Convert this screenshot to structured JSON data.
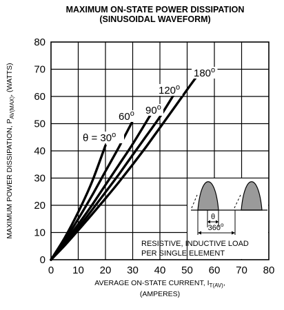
{
  "chart_data": {
    "type": "line",
    "title_line1": "MAXIMUM ON-STATE POWER DISSIPATION",
    "title_line2": "(SINUSOIDAL WAVEFORM)",
    "ylabel_main": "MAXIMUM POWER DISSIPATION, P",
    "ylabel_sub": "AV(MAX)",
    "ylabel_unit": ", (WATTS)",
    "xlabel_main": "AVERAGE ON-STATE  CURRENT, I",
    "xlabel_sub": "T(AV)",
    "xlabel_end": ",",
    "xlabel_unit": "(AMPERES)",
    "xlim": [
      0,
      80
    ],
    "ylim": [
      0,
      80
    ],
    "xticks": [
      0,
      10,
      20,
      30,
      40,
      50,
      60,
      70,
      80
    ],
    "yticks": [
      0,
      10,
      20,
      30,
      40,
      50,
      60,
      70,
      80
    ],
    "grid": true,
    "series": [
      {
        "name": "θ = 30",
        "unit": "o",
        "points": [
          [
            0,
            0
          ],
          [
            5,
            8
          ],
          [
            10,
            17.5
          ],
          [
            15,
            28.5
          ],
          [
            20,
            42
          ]
        ]
      },
      {
        "name": "60",
        "unit": "o",
        "points": [
          [
            0,
            0
          ],
          [
            5,
            7
          ],
          [
            10,
            15
          ],
          [
            15,
            23.5
          ],
          [
            20,
            32.5
          ],
          [
            25,
            41.5
          ],
          [
            30,
            51
          ]
        ]
      },
      {
        "name": "90",
        "unit": "o",
        "points": [
          [
            0,
            0
          ],
          [
            5,
            6.2
          ],
          [
            10,
            13
          ],
          [
            15,
            20
          ],
          [
            20,
            27.5
          ],
          [
            25,
            35
          ],
          [
            30,
            42.5
          ],
          [
            37,
            54
          ]
        ]
      },
      {
        "name": "120",
        "unit": "o",
        "points": [
          [
            0,
            0
          ],
          [
            5,
            5.6
          ],
          [
            10,
            11.8
          ],
          [
            15,
            18.2
          ],
          [
            20,
            24.8
          ],
          [
            25,
            31.5
          ],
          [
            30,
            38.5
          ],
          [
            35,
            45.5
          ],
          [
            40,
            52.5
          ],
          [
            45,
            60.5
          ]
        ]
      },
      {
        "name": "180",
        "unit": "o",
        "points": [
          [
            0,
            0
          ],
          [
            5,
            5.2
          ],
          [
            10,
            10.8
          ],
          [
            15,
            16.6
          ],
          [
            20,
            22.5
          ],
          [
            25,
            28.6
          ],
          [
            30,
            35
          ],
          [
            35,
            41.6
          ],
          [
            40,
            48.5
          ],
          [
            45,
            55.5
          ],
          [
            50,
            62.5
          ],
          [
            54,
            68
          ]
        ]
      }
    ],
    "inset": {
      "theta_label": "θ",
      "period_label": "360",
      "period_unit": "o",
      "note_line1": "RESISTIVE, INDUCTIVE LOAD",
      "note_line2": "PER SINGLE ELEMENT"
    }
  }
}
